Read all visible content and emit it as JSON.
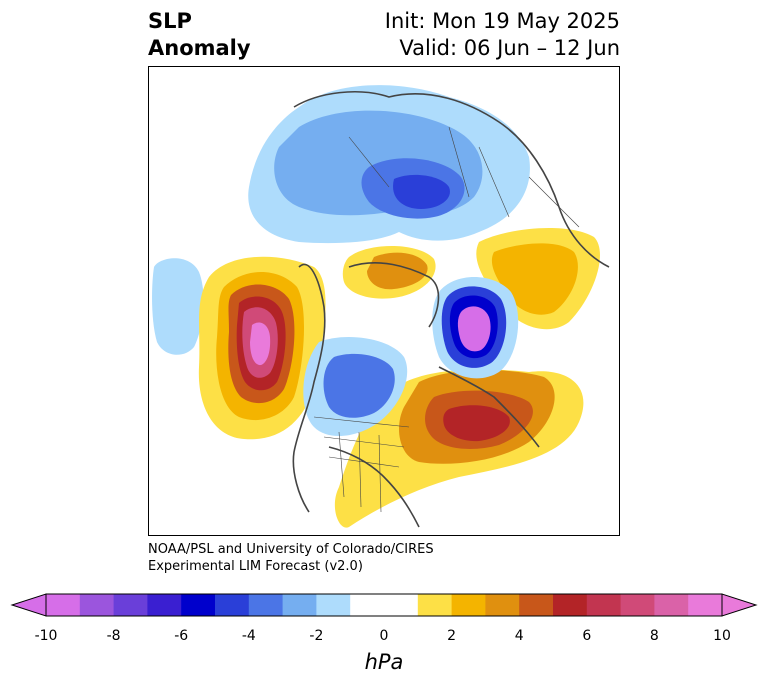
{
  "title": {
    "left_line1": "SLP",
    "left_line2": "Anomaly",
    "right_line1": "Init: Mon 19 May 2025",
    "right_line2": "Valid: 06 Jun – 12 Jun"
  },
  "credit": {
    "line1": "NOAA/PSL and University of Colorado/CIRES",
    "line2": "Experimental LIM Forecast (v2.0)"
  },
  "colorbar": {
    "unit": "hPa",
    "colors": [
      "#d66ee8",
      "#9b55dd",
      "#6a3fd9",
      "#3a1fd1",
      "#0000cc",
      "#2a3fd8",
      "#4b75e6",
      "#75aef0",
      "#aedcfc",
      "#ffffff",
      "#ffffff",
      "#fde046",
      "#f4b400",
      "#e0900f",
      "#c8571a",
      "#b32427",
      "#c23550",
      "#d04a78",
      "#da62a8",
      "#e97ada"
    ],
    "tick_labels": [
      "-10",
      "-8",
      "-6",
      "-4",
      "-2",
      "0",
      "2",
      "4",
      "6",
      "8",
      "10"
    ]
  },
  "map": {
    "projection": "north polar stereographic",
    "features": [
      "sea-level pressure anomaly shading",
      "coastlines",
      "country borders",
      "us state borders"
    ]
  }
}
